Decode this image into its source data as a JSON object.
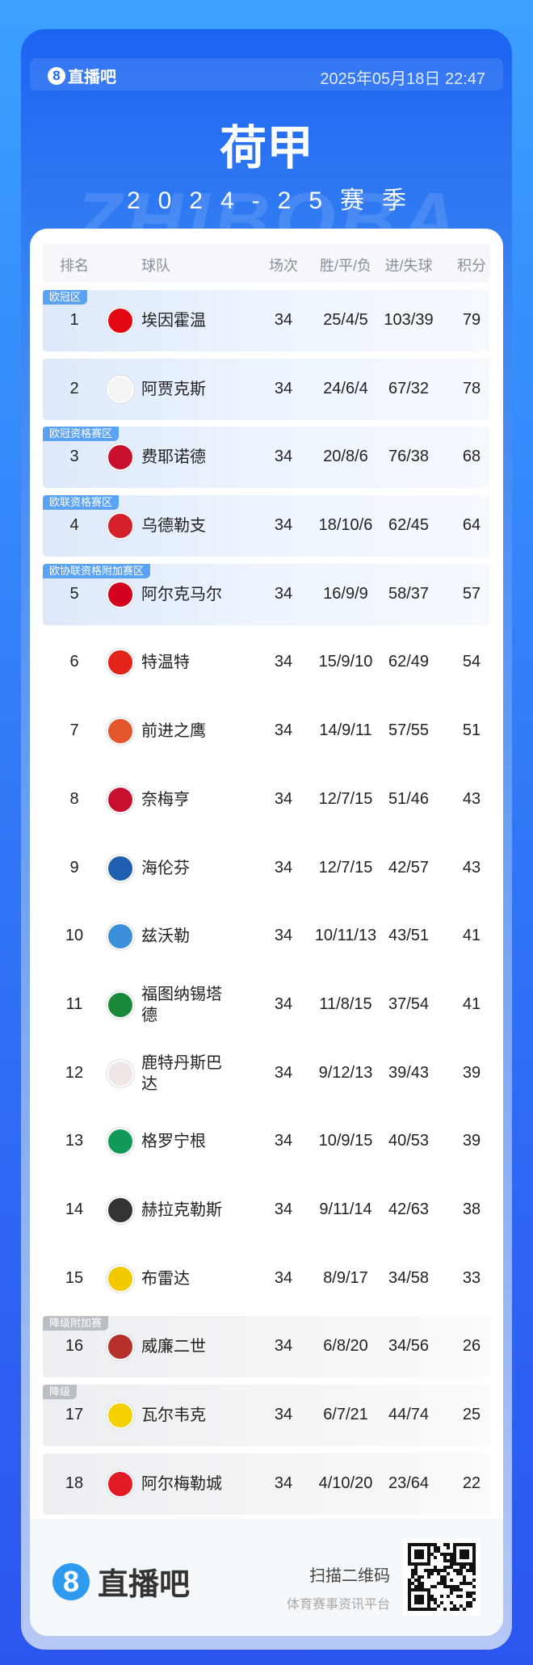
{
  "header": {
    "brand": "直播吧",
    "datetime": "2025年05月18日 22:47",
    "title": "荷甲",
    "season": "2024-25赛季",
    "watermark": "ZHIBOBA"
  },
  "table": {
    "columns": [
      "排名",
      "球队",
      "场次",
      "胜/平/负",
      "进/失球",
      "积分"
    ],
    "rows": [
      {
        "rank": "1",
        "team": "埃因霍温",
        "gp": "34",
        "wdl": "25/4/5",
        "goals": "103/39",
        "pts": "79",
        "zone": "欧冠区",
        "style": "blue",
        "badge_color": "#e30613"
      },
      {
        "rank": "2",
        "team": "阿贾克斯",
        "gp": "34",
        "wdl": "24/6/4",
        "goals": "67/32",
        "pts": "78",
        "zone": "",
        "style": "blue",
        "badge_color": "#f4f4f4"
      },
      {
        "rank": "3",
        "team": "费耶诺德",
        "gp": "34",
        "wdl": "20/8/6",
        "goals": "76/38",
        "pts": "68",
        "zone": "欧冠资格赛区",
        "style": "blue",
        "badge_color": "#c8102e"
      },
      {
        "rank": "4",
        "team": "乌德勒支",
        "gp": "34",
        "wdl": "18/10/6",
        "goals": "62/45",
        "pts": "64",
        "zone": "欧联资格赛区",
        "style": "blue",
        "badge_color": "#d4202a"
      },
      {
        "rank": "5",
        "team": "阿尔克马尔",
        "gp": "34",
        "wdl": "16/9/9",
        "goals": "58/37",
        "pts": "57",
        "zone": "欧协联资格附加赛区",
        "style": "blue",
        "badge_color": "#d4001f"
      },
      {
        "rank": "6",
        "team": "特温特",
        "gp": "34",
        "wdl": "15/9/10",
        "goals": "62/49",
        "pts": "54",
        "zone": "",
        "style": "",
        "badge_color": "#e2231a"
      },
      {
        "rank": "7",
        "team": "前进之鹰",
        "gp": "34",
        "wdl": "14/9/11",
        "goals": "57/55",
        "pts": "51",
        "zone": "",
        "style": "",
        "badge_color": "#e4572e"
      },
      {
        "rank": "8",
        "team": "奈梅亨",
        "gp": "34",
        "wdl": "12/7/15",
        "goals": "51/46",
        "pts": "43",
        "zone": "",
        "style": "",
        "badge_color": "#c8102e"
      },
      {
        "rank": "9",
        "team": "海伦芬",
        "gp": "34",
        "wdl": "12/7/15",
        "goals": "42/57",
        "pts": "43",
        "zone": "",
        "style": "",
        "badge_color": "#1f5fb0"
      },
      {
        "rank": "10",
        "team": "兹沃勒",
        "gp": "34",
        "wdl": "10/11/13",
        "goals": "43/51",
        "pts": "41",
        "zone": "",
        "style": "",
        "badge_color": "#3a8fd8"
      },
      {
        "rank": "11",
        "team": "福图纳锡塔德",
        "gp": "34",
        "wdl": "11/8/15",
        "goals": "37/54",
        "pts": "41",
        "zone": "",
        "style": "",
        "badge_color": "#1a8a3a"
      },
      {
        "rank": "12",
        "team": "鹿特丹斯巴达",
        "gp": "34",
        "wdl": "9/12/13",
        "goals": "39/43",
        "pts": "39",
        "zone": "",
        "style": "",
        "badge_color": "#f0e6e6"
      },
      {
        "rank": "13",
        "team": "格罗宁根",
        "gp": "34",
        "wdl": "10/9/15",
        "goals": "40/53",
        "pts": "39",
        "zone": "",
        "style": "",
        "badge_color": "#0f9a58"
      },
      {
        "rank": "14",
        "team": "赫拉克勒斯",
        "gp": "34",
        "wdl": "9/11/14",
        "goals": "42/63",
        "pts": "38",
        "zone": "",
        "style": "",
        "badge_color": "#333333"
      },
      {
        "rank": "15",
        "team": "布雷达",
        "gp": "34",
        "wdl": "8/9/17",
        "goals": "34/58",
        "pts": "33",
        "zone": "",
        "style": "",
        "badge_color": "#f2c800"
      },
      {
        "rank": "16",
        "team": "威廉二世",
        "gp": "34",
        "wdl": "6/8/20",
        "goals": "34/56",
        "pts": "26",
        "zone": "降级附加赛",
        "style": "gray",
        "badge_color": "#b5302a"
      },
      {
        "rank": "17",
        "team": "瓦尔韦克",
        "gp": "34",
        "wdl": "6/7/21",
        "goals": "44/74",
        "pts": "25",
        "zone": "降级",
        "style": "gray",
        "badge_color": "#f5d000"
      },
      {
        "rank": "18",
        "team": "阿尔梅勒城",
        "gp": "34",
        "wdl": "4/10/20",
        "goals": "23/64",
        "pts": "22",
        "zone": "",
        "style": "gray",
        "badge_color": "#e01b24"
      }
    ]
  },
  "footer": {
    "brand": "直播吧",
    "scan": "扫描二维码",
    "tagline": "体育赛事资讯平台"
  }
}
